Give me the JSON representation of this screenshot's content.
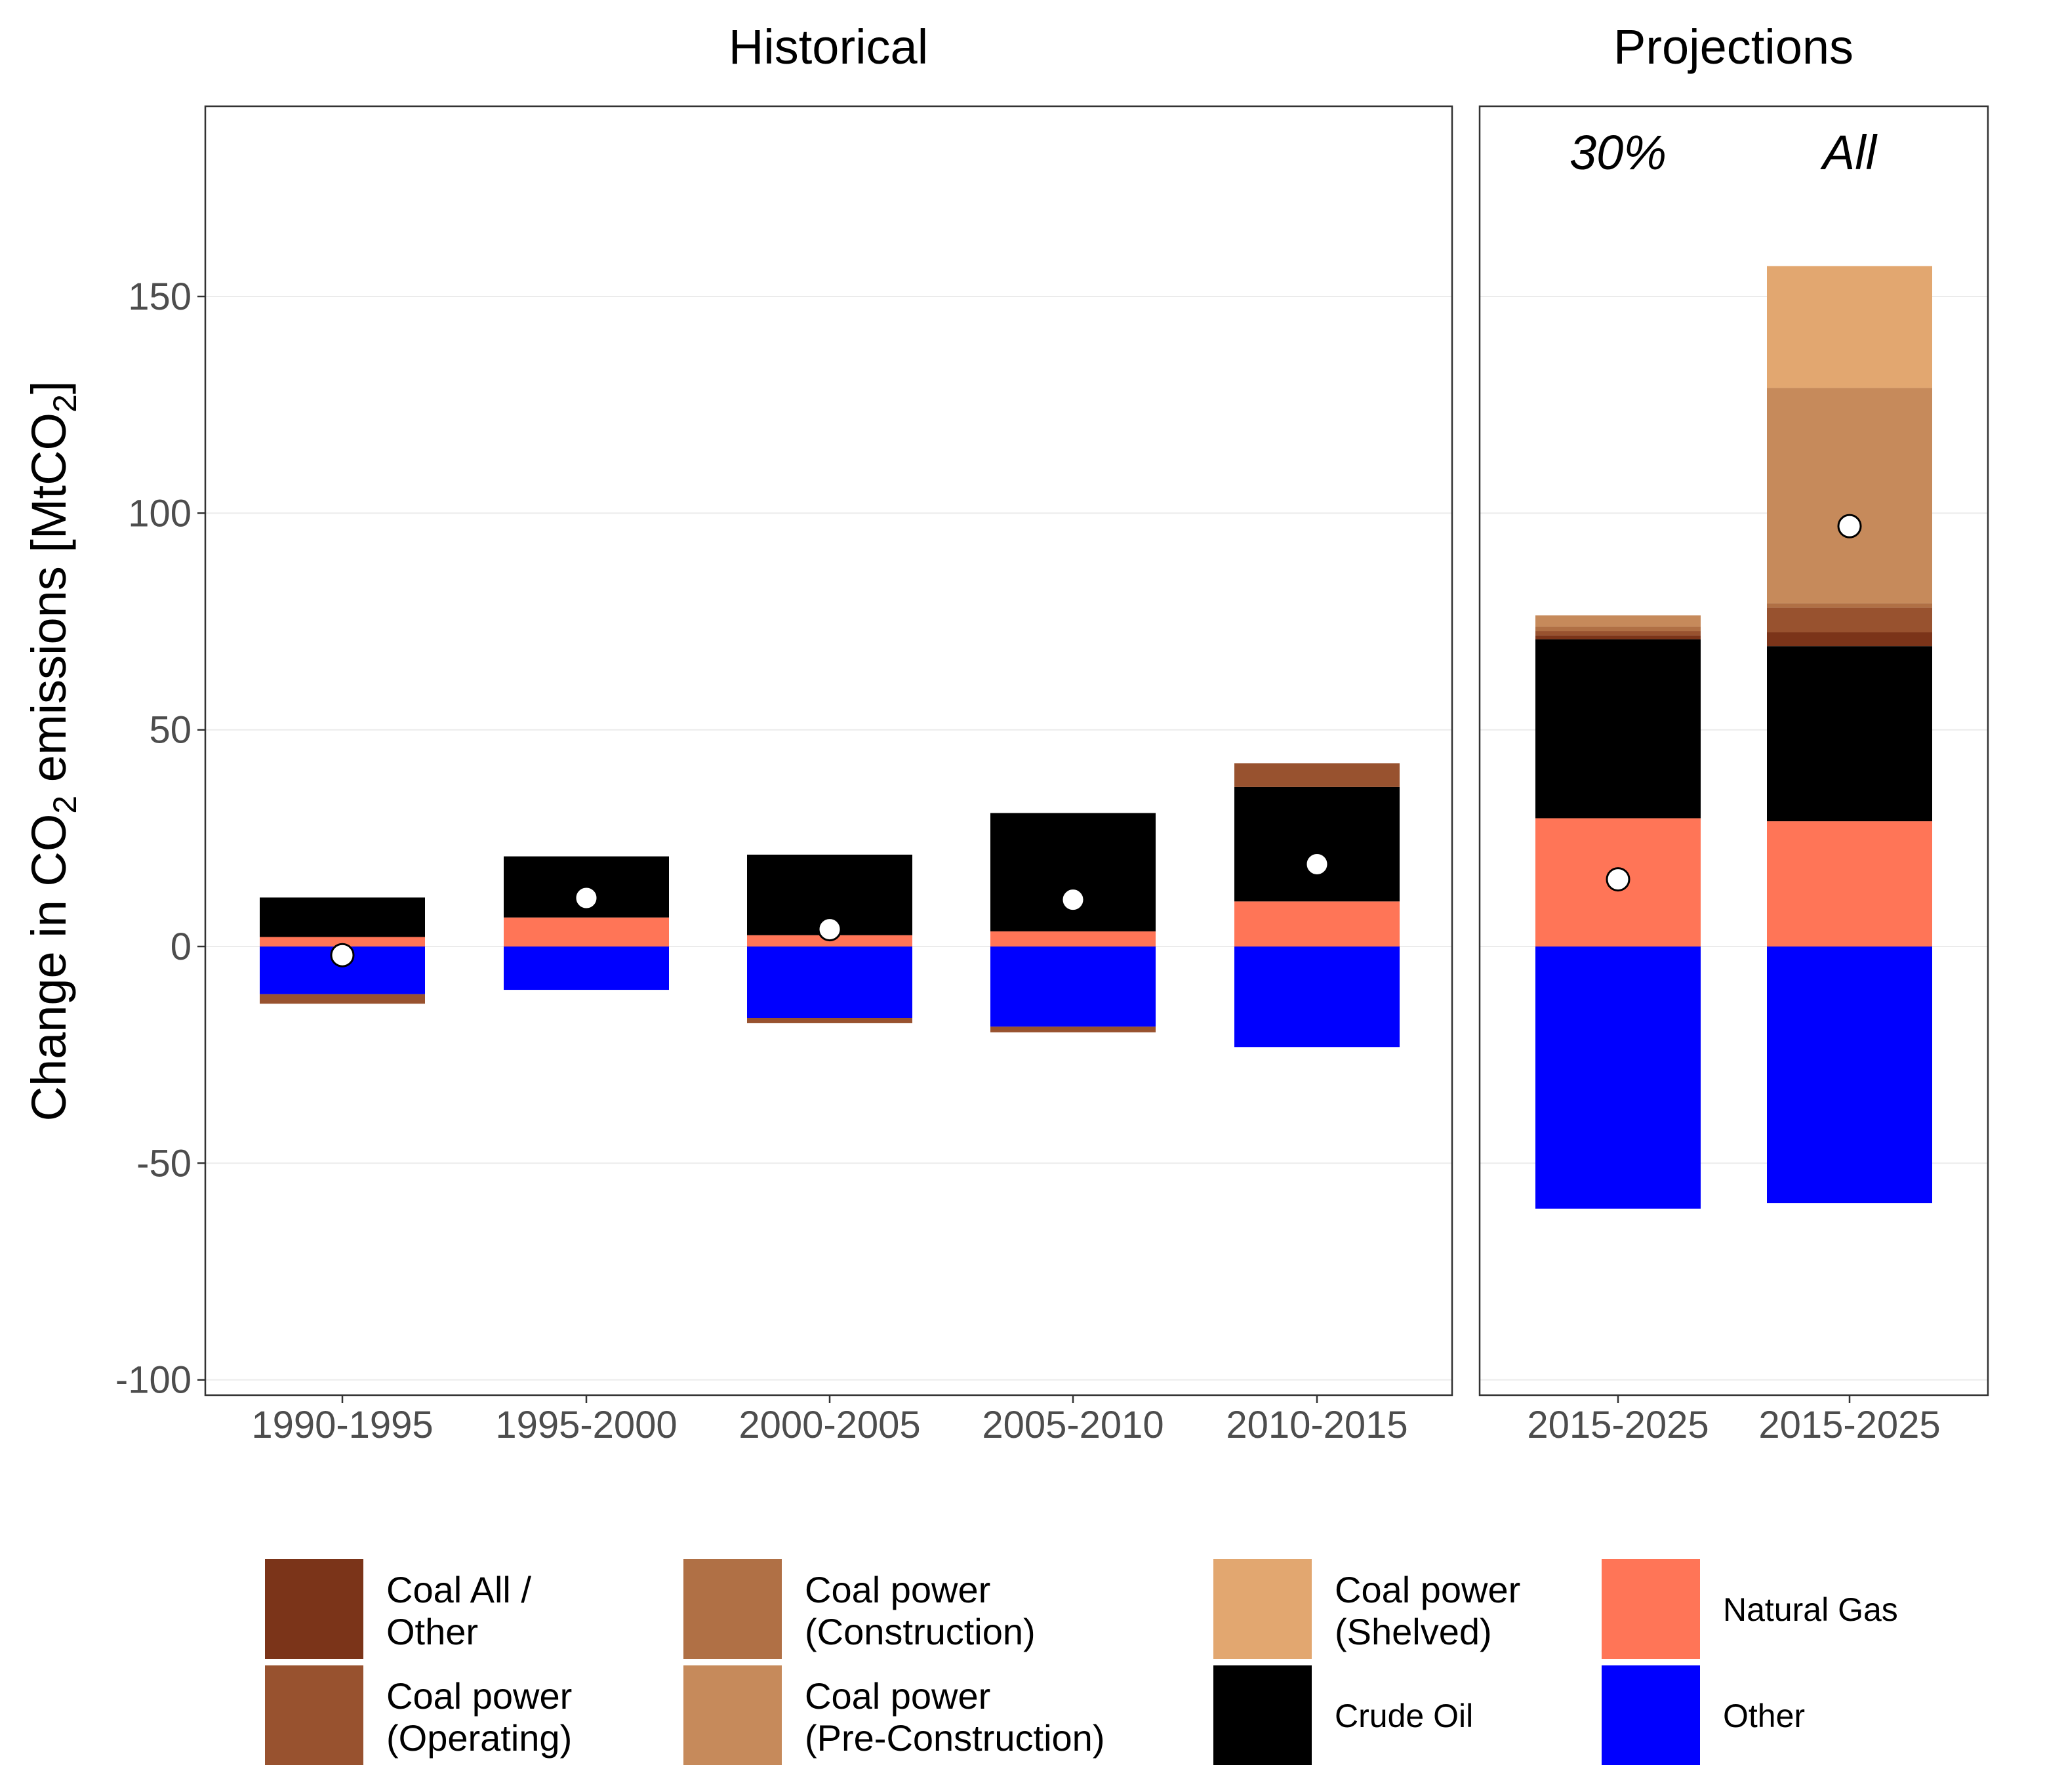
{
  "chart_data": {
    "type": "bar",
    "stacked": true,
    "ylabel_parts": [
      "Change in CO",
      "2",
      " emissions [MtCO",
      "2",
      "]"
    ],
    "ylim": [
      -100,
      190
    ],
    "yticks": [
      150,
      100,
      50,
      0,
      -50,
      -100
    ],
    "yticklabels": [
      "150",
      "100",
      "50",
      "0",
      "-50",
      "-100"
    ],
    "grid": true,
    "marker_legend": "white circle = net total change",
    "colors": {
      "coal_all_other": "#7b3419",
      "coal_operating": "#98522f",
      "coal_construction": "#b07045",
      "coal_preconstruction": "#c68a5b",
      "coal_shelved": "#e2a770",
      "crude_oil": "#000000",
      "natural_gas": "#ff7557",
      "other": "#0000ff"
    },
    "panels": [
      {
        "title": "Historical",
        "categories": [
          "1990-1995",
          "1995-2000",
          "2000-2005",
          "2005-2010",
          "2010-2015"
        ],
        "subtitles": [],
        "segments": [
          [
            {
              "series": "other",
              "from": 0,
              "to": -11
            },
            {
              "series": "coal_operating",
              "from": -11,
              "to": -13.2
            },
            {
              "series": "natural_gas",
              "from": 0,
              "to": 2.2
            },
            {
              "series": "crude_oil",
              "from": 2.2,
              "to": 11.3
            }
          ],
          [
            {
              "series": "other",
              "from": 0,
              "to": -10
            },
            {
              "series": "natural_gas",
              "from": 0,
              "to": 6.7
            },
            {
              "series": "crude_oil",
              "from": 6.7,
              "to": 20.8
            }
          ],
          [
            {
              "series": "other",
              "from": 0,
              "to": -16.5
            },
            {
              "series": "coal_operating",
              "from": -16.5,
              "to": -17.7
            },
            {
              "series": "natural_gas",
              "from": 0,
              "to": 2.6
            },
            {
              "series": "crude_oil",
              "from": 2.6,
              "to": 21.2
            }
          ],
          [
            {
              "series": "other",
              "from": 0,
              "to": -18.5
            },
            {
              "series": "coal_operating",
              "from": -18.5,
              "to": -19.8
            },
            {
              "series": "natural_gas",
              "from": 0,
              "to": 3.5
            },
            {
              "series": "crude_oil",
              "from": 3.5,
              "to": 30.8
            }
          ],
          [
            {
              "series": "other",
              "from": 0,
              "to": -23.2
            },
            {
              "series": "natural_gas",
              "from": 0,
              "to": 10.4
            },
            {
              "series": "crude_oil",
              "from": 10.4,
              "to": 36.8
            },
            {
              "series": "coal_operating",
              "from": 36.8,
              "to": 42.3
            }
          ]
        ],
        "totals": [
          -2,
          11.2,
          4,
          10.8,
          19
        ]
      },
      {
        "title": "Projections",
        "categories": [
          "2015-2025",
          "2015-2025"
        ],
        "subtitles": [
          "30%",
          "All"
        ],
        "segments": [
          [
            {
              "series": "other",
              "from": 0,
              "to": -60.5
            },
            {
              "series": "natural_gas",
              "from": 0,
              "to": 29.6
            },
            {
              "series": "crude_oil",
              "from": 29.6,
              "to": 70.9
            },
            {
              "series": "coal_all_other",
              "from": 70.9,
              "to": 71.8
            },
            {
              "series": "coal_operating",
              "from": 71.8,
              "to": 72.8
            },
            {
              "series": "coal_construction",
              "from": 72.8,
              "to": 73.8
            },
            {
              "series": "coal_preconstruction",
              "from": 73.8,
              "to": 76.4
            }
          ],
          [
            {
              "series": "other",
              "from": 0,
              "to": -59.2
            },
            {
              "series": "natural_gas",
              "from": 0,
              "to": 28.9
            },
            {
              "series": "crude_oil",
              "from": 28.9,
              "to": 69.3
            },
            {
              "series": "coal_all_other",
              "from": 69.3,
              "to": 72.5
            },
            {
              "series": "coal_operating",
              "from": 72.5,
              "to": 78.2
            },
            {
              "series": "coal_construction",
              "from": 78.2,
              "to": 79.2
            },
            {
              "series": "coal_preconstruction",
              "from": 79.2,
              "to": 128.9
            },
            {
              "series": "coal_shelved",
              "from": 128.9,
              "to": 157
            }
          ]
        ],
        "totals": [
          15.5,
          97
        ]
      }
    ],
    "legend": {
      "position": "bottom",
      "items": [
        {
          "key": "coal_all_other",
          "lines": [
            "Coal All /",
            "Other"
          ]
        },
        {
          "key": "coal_operating",
          "lines": [
            "Coal power",
            "(Operating)"
          ]
        },
        {
          "key": "coal_construction",
          "lines": [
            "Coal power",
            "(Construction)"
          ]
        },
        {
          "key": "coal_preconstruction",
          "lines": [
            "Coal power",
            "(Pre-Construction)"
          ]
        },
        {
          "key": "coal_shelved",
          "lines": [
            "Coal power",
            "(Shelved)"
          ]
        },
        {
          "key": "crude_oil",
          "lines": [
            "Crude Oil"
          ]
        },
        {
          "key": "natural_gas",
          "lines": [
            "Natural Gas"
          ]
        },
        {
          "key": "other",
          "lines": [
            "Other"
          ]
        }
      ]
    }
  }
}
